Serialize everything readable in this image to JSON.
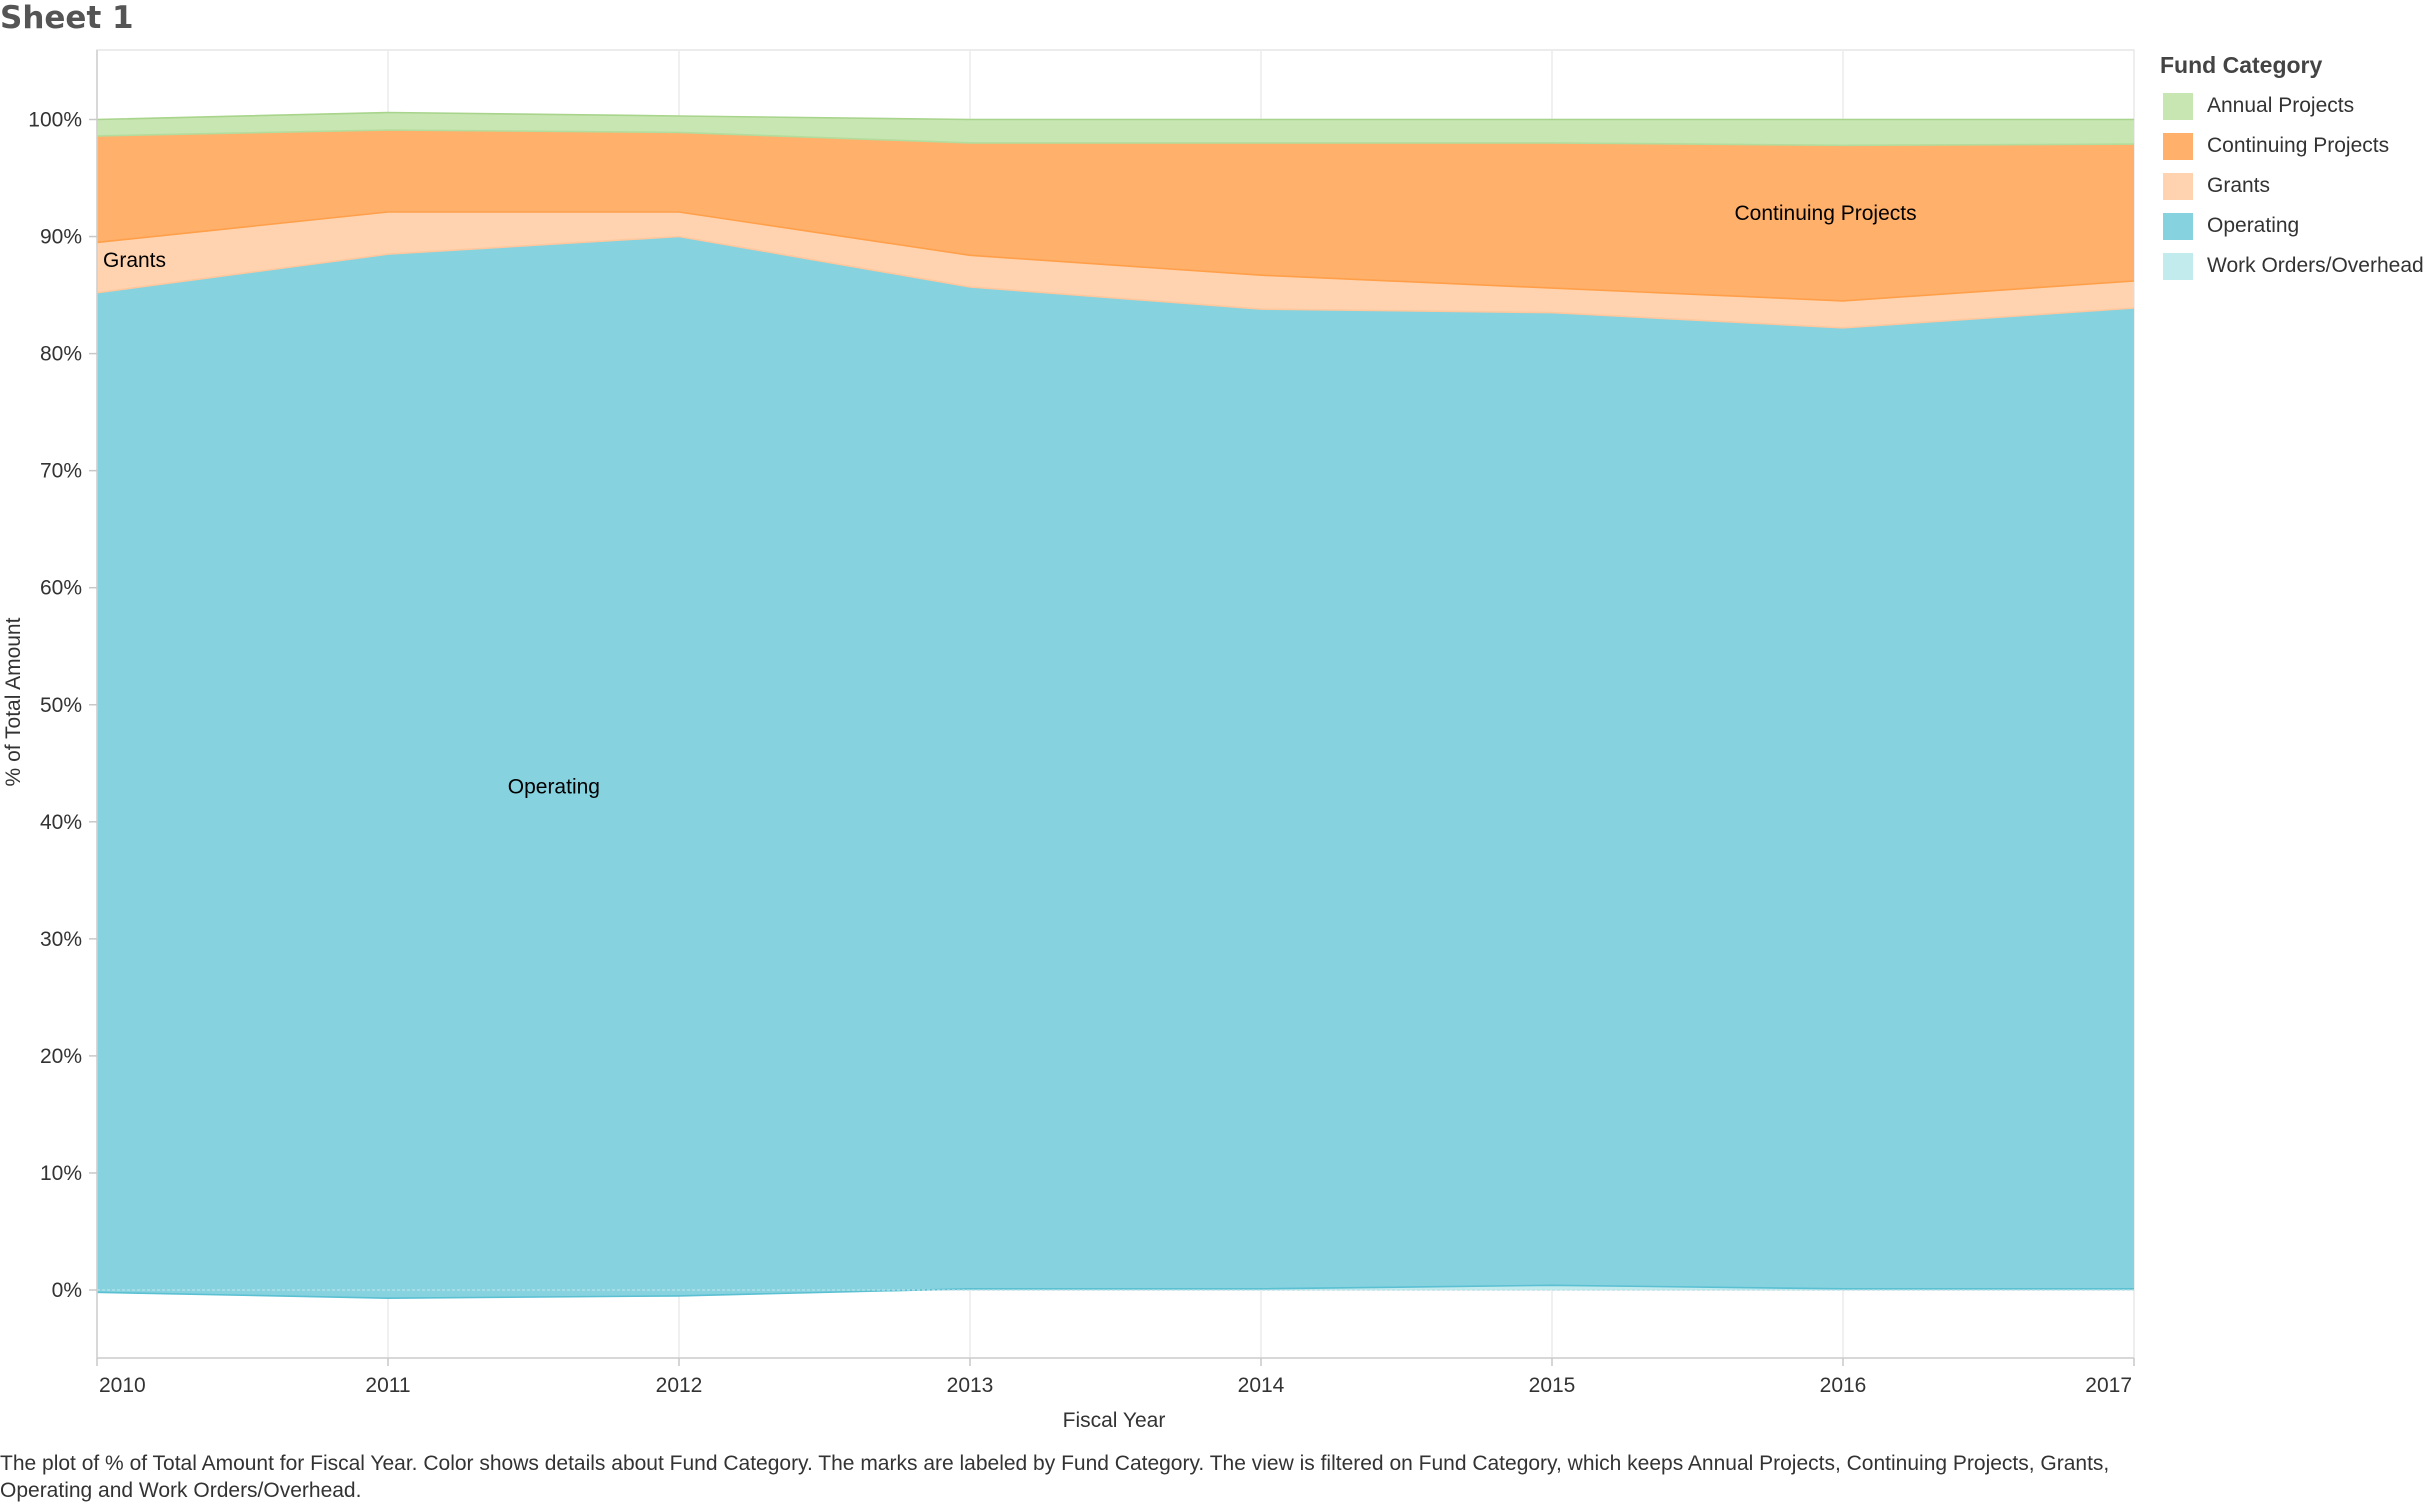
{
  "sheet": {
    "title": "Sheet 1"
  },
  "legend": {
    "title": "Fund Category",
    "items": [
      {
        "label": "Annual Projects",
        "color": "#c7e6b2"
      },
      {
        "label": "Continuing Projects",
        "color": "#ffb06b"
      },
      {
        "label": "Grants",
        "color": "#ffd3b0"
      },
      {
        "label": "Operating",
        "color": "#86d2df"
      },
      {
        "label": "Work Orders/Overhead",
        "color": "#c2ebee"
      }
    ]
  },
  "caption": "The plot of % of Total Amount for Fiscal Year.  Color shows details about Fund Category.  The marks are labeled by Fund Category. The view is filtered on Fund Category, which keeps Annual Projects, Continuing Projects, Grants, Operating and Work Orders/Overhead.",
  "chart_data": {
    "type": "area",
    "stacked": true,
    "xlabel": "Fiscal Year",
    "ylabel": "% of Total Amount",
    "x": [
      "2010",
      "2011",
      "2012",
      "2013",
      "2014",
      "2015",
      "2016",
      "2017"
    ],
    "ylim": [
      -6,
      106
    ],
    "yticks": [
      "0%",
      "10%",
      "20%",
      "30%",
      "40%",
      "50%",
      "60%",
      "70%",
      "80%",
      "90%",
      "100%"
    ],
    "grid": true,
    "legend_position": "right",
    "series": [
      {
        "name": "Work Orders/Overhead",
        "values": [
          -0.2,
          -0.7,
          -0.5,
          0.1,
          0.1,
          0.4,
          0.1,
          0.1
        ]
      },
      {
        "name": "Operating",
        "values": [
          85.4,
          89.2,
          90.5,
          85.6,
          83.7,
          83.1,
          82.1,
          83.8
        ]
      },
      {
        "name": "Grants",
        "values": [
          4.3,
          3.6,
          2.1,
          2.7,
          2.9,
          2.1,
          2.3,
          2.3
        ]
      },
      {
        "name": "Continuing Projects",
        "values": [
          9.1,
          7.0,
          6.8,
          9.6,
          11.3,
          12.4,
          13.3,
          11.7
        ]
      },
      {
        "name": "Annual Projects",
        "values": [
          1.4,
          1.5,
          1.4,
          2.0,
          2.0,
          2.0,
          2.2,
          2.1
        ]
      }
    ],
    "annotations": [
      {
        "label": "Grants",
        "x": "2010",
        "y": 88
      },
      {
        "label": "Operating",
        "x": "2011",
        "y": 43
      },
      {
        "label": "Continuing Projects",
        "x": "2016",
        "y": 92
      }
    ]
  }
}
